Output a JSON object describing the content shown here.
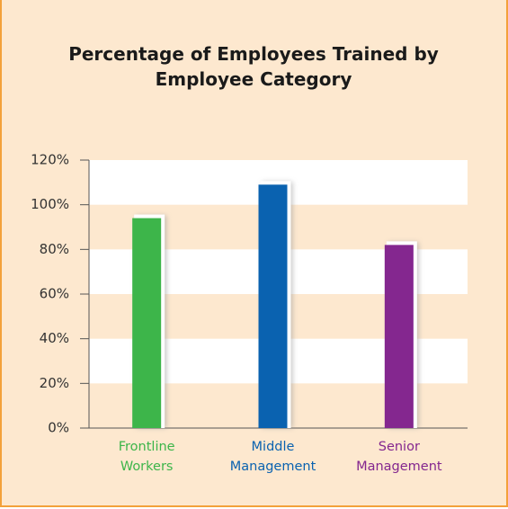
{
  "chart_data": {
    "type": "bar",
    "title": "Percentage of Employees Trained by Employee Category",
    "categories": [
      "Frontline Workers",
      "Middle Management",
      "Senior Management"
    ],
    "values": [
      94,
      109,
      82
    ],
    "colors": [
      "#3db54a",
      "#0a62b0",
      "#84278f"
    ],
    "ylim": [
      0,
      120
    ],
    "yticks": [
      {
        "value": 0,
        "label": "0%"
      },
      {
        "value": 20,
        "label": "20%"
      },
      {
        "value": 40,
        "label": "40%"
      },
      {
        "value": 60,
        "label": "60%"
      },
      {
        "value": 80,
        "label": "80%"
      },
      {
        "value": 100,
        "label": "100%"
      },
      {
        "value": 120,
        "label": "120%"
      }
    ],
    "grid": true
  }
}
